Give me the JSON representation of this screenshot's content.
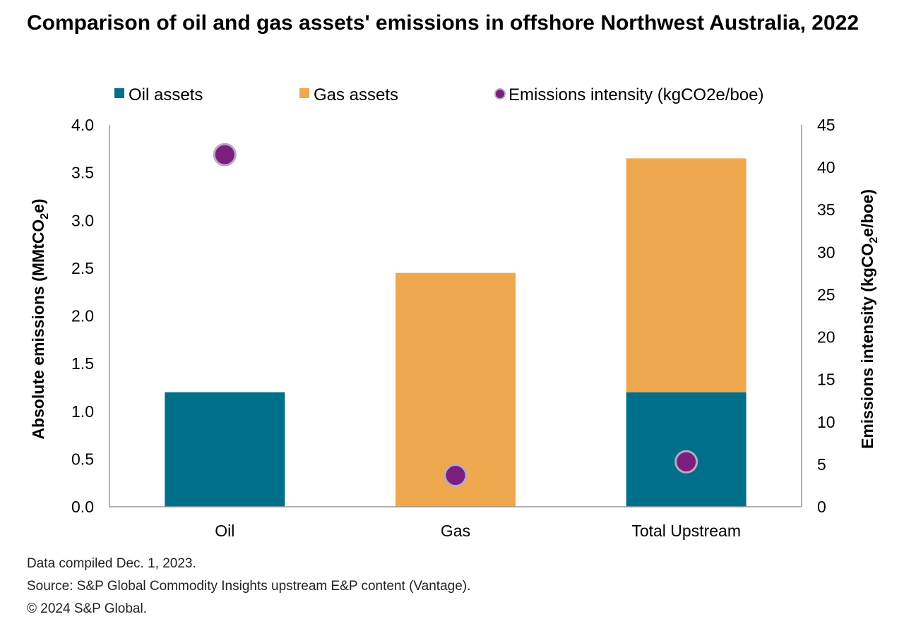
{
  "chart_data": {
    "type": "bar",
    "title": "Comparison of oil and gas assets' emissions in offshore Northwest Australia, 2022",
    "categories": [
      "Oil",
      "Gas",
      "Total Upstream"
    ],
    "series": [
      {
        "name": "Oil assets",
        "kind": "bar",
        "stack": "emissions",
        "axis": "left",
        "color": "#00708a",
        "values": [
          1.2,
          0,
          1.2
        ]
      },
      {
        "name": "Gas assets",
        "kind": "bar",
        "stack": "emissions",
        "axis": "left",
        "color": "#f0a84e",
        "values": [
          0,
          2.45,
          2.45
        ]
      },
      {
        "name": "Emissions intensity (kgCO2e/boe)",
        "kind": "scatter",
        "axis": "right",
        "color": "#7a1f7e",
        "values": [
          41.5,
          3.7,
          5.3
        ]
      }
    ],
    "ylabel": "Absolute emissions (MMtCO2e)",
    "ylabel2": "Emissions intensity (kgCO2e/boe)",
    "ylim": [
      0,
      4
    ],
    "ylim2": [
      0,
      45
    ],
    "yticks": [
      "0.0",
      "0.5",
      "1.0",
      "1.5",
      "2.0",
      "2.5",
      "3.0",
      "3.5",
      "4.0"
    ],
    "yticks2": [
      "0",
      "5",
      "10",
      "15",
      "20",
      "25",
      "30",
      "35",
      "40",
      "45"
    ],
    "legend_position": "top",
    "grid": false
  },
  "footnotes": {
    "compiled": "Data compiled Dec. 1, 2023.",
    "source": "Source: S&P Global Commodity Insights upstream E&P content (Vantage).",
    "copyright": "© 2024 S&P Global."
  }
}
